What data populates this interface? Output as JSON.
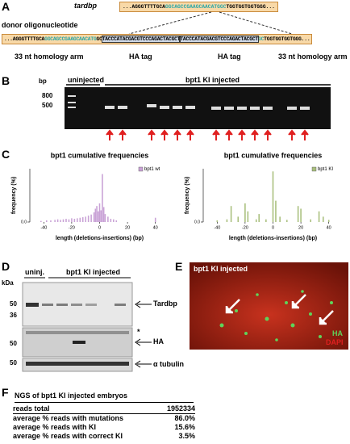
{
  "panels": {
    "A": {
      "letter": "A",
      "gene": "tardbp",
      "wt_seq": [
        "...AGGGTTTTGCA",
        "GGCAGCCGAAGCAACATGGC",
        "TGGTGGTGGTGGG..."
      ],
      "donor_label": "donor oligonucleotide",
      "donor_seq": [
        "...AGGGTTTTGCA",
        "GGCAGCCGAAGCAACATG",
        "GC",
        "TACCCATACGACGTCCCAGACTACGCT",
        "TACCCATACGACGTCCCAGACTACGCT",
        "GC",
        "TGGTGGTGGTGGG..."
      ],
      "labels": [
        "33 nt homology arm",
        "HA tag",
        "HA tag",
        "33 nt homology arm"
      ]
    },
    "B": {
      "letter": "B",
      "unit": "bp",
      "markers": [
        "800",
        "500"
      ],
      "groups": [
        "uninjected",
        "bpt1 KI injected"
      ]
    },
    "C": {
      "letter": "C"
    },
    "D": {
      "letter": "D",
      "unit": "kDa",
      "markers": [
        "50",
        "36",
        "50",
        "50"
      ],
      "groups": [
        "uninj.",
        "bpt1 KI injected"
      ],
      "bands": [
        "Tardbp",
        "*",
        "HA",
        "α tubulin"
      ]
    },
    "E": {
      "letter": "E",
      "title": "bpt1 KI injected",
      "channels": [
        "HA",
        "DAPI"
      ]
    },
    "F": {
      "letter": "F",
      "title": "NGS of bpt1 KI injected embryos",
      "rows": [
        [
          "reads total",
          "1952334"
        ],
        [
          "average % reads with mutations",
          "86.0%"
        ],
        [
          "average % reads with KI",
          "15.6%"
        ],
        [
          "average % reads with correct KI",
          "3.5%"
        ]
      ]
    }
  },
  "chart_data": [
    {
      "type": "bar",
      "title": "bpt1 cumulative frequencies",
      "x_label": "length (deletions-insertions) (bp)",
      "y_label": "frequency (%)",
      "xlim": [
        -50,
        50
      ],
      "xticks": [
        -40,
        -20,
        0,
        20,
        40
      ],
      "ylim": [
        0,
        1
      ],
      "yticks": [
        {
          "value": 0,
          "label": "0.0"
        }
      ],
      "legend": "top-right",
      "series": [
        {
          "name": "bpt1 wt",
          "color": "#c9a2d6",
          "x": [
            -42,
            -38,
            -35,
            -32,
            -30,
            -28,
            -26,
            -24,
            -22,
            -20,
            -18,
            -16,
            -14,
            -12,
            -10,
            -8,
            -6,
            -4,
            -3,
            -2,
            -1,
            0,
            1,
            2,
            3,
            4,
            6,
            8,
            10,
            12,
            40
          ],
          "values": [
            0.02,
            0.03,
            0.03,
            0.04,
            0.05,
            0.04,
            0.05,
            0.06,
            0.05,
            0.07,
            0.06,
            0.07,
            0.08,
            0.09,
            0.1,
            0.12,
            0.14,
            0.18,
            0.25,
            0.3,
            0.2,
            0.35,
            0.22,
            0.9,
            0.28,
            0.15,
            0.1,
            0.06,
            0.05,
            0.03,
            0.08
          ]
        }
      ]
    },
    {
      "type": "bar",
      "title": "bpt1 cumulative frequencies",
      "x_label": "length (deletions-insertions) (bp)",
      "y_label": "frequency (%)",
      "xlim": [
        -50,
        50
      ],
      "xticks": [
        -40,
        -20,
        0,
        20,
        40
      ],
      "ylim": [
        0,
        1
      ],
      "yticks": [
        {
          "value": 0,
          "label": "0.0"
        }
      ],
      "legend": "top-right",
      "series": [
        {
          "name": "bpt1 KI",
          "color": "#a9bf7d",
          "x": [
            -40,
            -33,
            -30,
            -25,
            -20,
            -18,
            -12,
            -10,
            -5,
            0,
            2,
            5,
            10,
            18,
            20,
            27,
            33,
            36,
            40
          ],
          "values": [
            0.03,
            0.05,
            0.3,
            0.1,
            0.35,
            0.2,
            0.05,
            0.15,
            0.05,
            0.95,
            0.4,
            0.1,
            0.04,
            0.3,
            0.25,
            0.05,
            0.2,
            0.1,
            0.04
          ]
        }
      ]
    }
  ]
}
